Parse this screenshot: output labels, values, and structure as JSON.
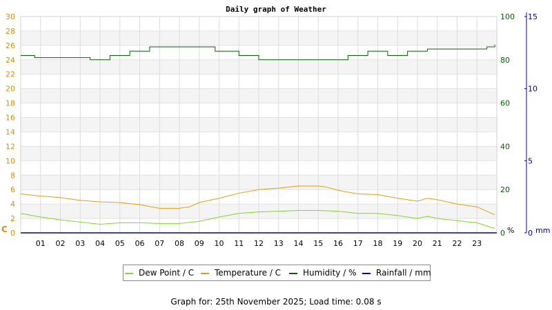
{
  "chart_data": {
    "type": "line",
    "title": "Daily graph of Weather",
    "x_tick_labels": [
      "01",
      "02",
      "03",
      "04",
      "05",
      "06",
      "07",
      "08",
      "09",
      "10",
      "11",
      "12",
      "13",
      "14",
      "15",
      "16",
      "17",
      "18",
      "19",
      "20",
      "21",
      "22",
      "23"
    ],
    "x_range_hours": [
      0,
      24
    ],
    "left_axis": {
      "unit_label": "C",
      "range": [
        0,
        30
      ],
      "ticks": [
        0,
        2,
        4,
        6,
        8,
        10,
        12,
        14,
        16,
        18,
        20,
        22,
        24,
        26,
        28,
        30
      ],
      "color": "#d89000"
    },
    "humidity_axis": {
      "unit_label": "%",
      "range": [
        0,
        100
      ],
      "ticks": [
        0,
        20,
        40,
        60,
        80,
        100
      ],
      "color": "#006400"
    },
    "rain_axis": {
      "unit_label": "mm",
      "range": [
        0,
        15
      ],
      "ticks": [
        0,
        5,
        10,
        15
      ],
      "color": "#00008b"
    },
    "grid": true,
    "series": [
      {
        "name": "Dew Point / C",
        "color": "#7cdc1e",
        "axis": "left",
        "x": [
          0,
          1,
          2,
          3,
          4,
          5,
          6,
          7,
          8,
          9,
          10,
          11,
          12,
          13,
          14,
          15,
          16,
          17,
          18,
          19,
          20,
          20.5,
          21,
          22,
          23,
          23.9
        ],
        "values": [
          2.7,
          2.2,
          1.8,
          1.5,
          1.2,
          1.4,
          1.4,
          1.3,
          1.3,
          1.6,
          2.2,
          2.7,
          2.9,
          3.0,
          3.1,
          3.1,
          3.0,
          2.7,
          2.7,
          2.4,
          2.0,
          2.3,
          2.0,
          1.7,
          1.4,
          0.6
        ]
      },
      {
        "name": "Temperature / C",
        "color": "#e0a000",
        "axis": "left",
        "x": [
          0,
          1,
          2,
          3,
          4,
          5,
          6,
          7,
          8,
          8.5,
          9,
          10,
          11,
          12,
          13,
          14,
          15,
          15.5,
          16,
          17,
          18,
          19,
          20,
          20.5,
          21,
          22,
          23,
          23.9
        ],
        "values": [
          5.4,
          5.1,
          4.9,
          4.5,
          4.3,
          4.2,
          3.9,
          3.4,
          3.4,
          3.6,
          4.2,
          4.8,
          5.5,
          6.0,
          6.2,
          6.5,
          6.5,
          6.3,
          5.9,
          5.4,
          5.3,
          4.8,
          4.4,
          4.8,
          4.6,
          4.0,
          3.6,
          2.5
        ]
      },
      {
        "name": "Humidity / %",
        "color": "#006400",
        "axis": "humidity",
        "x": [
          0,
          0.7,
          2,
          3.5,
          4.5,
          5.5,
          6.5,
          7.5,
          8.5,
          9.8,
          11,
          12,
          13,
          14,
          15,
          16.5,
          17.5,
          18.5,
          19.5,
          20.5,
          21.5,
          22.5,
          23.5,
          23.9
        ],
        "values": [
          82,
          81,
          81,
          80,
          82,
          84,
          86,
          86,
          86,
          84,
          82,
          80,
          80,
          80,
          80,
          82,
          84,
          82,
          84,
          85,
          85,
          85,
          86,
          87
        ]
      },
      {
        "name": "Rainfall / mm",
        "color": "#0000a0",
        "axis": "rain",
        "x": [
          0,
          24
        ],
        "values": [
          0,
          0
        ]
      }
    ]
  },
  "footer": "Graph for: 25th November 2025; Load time: 0.08 s"
}
